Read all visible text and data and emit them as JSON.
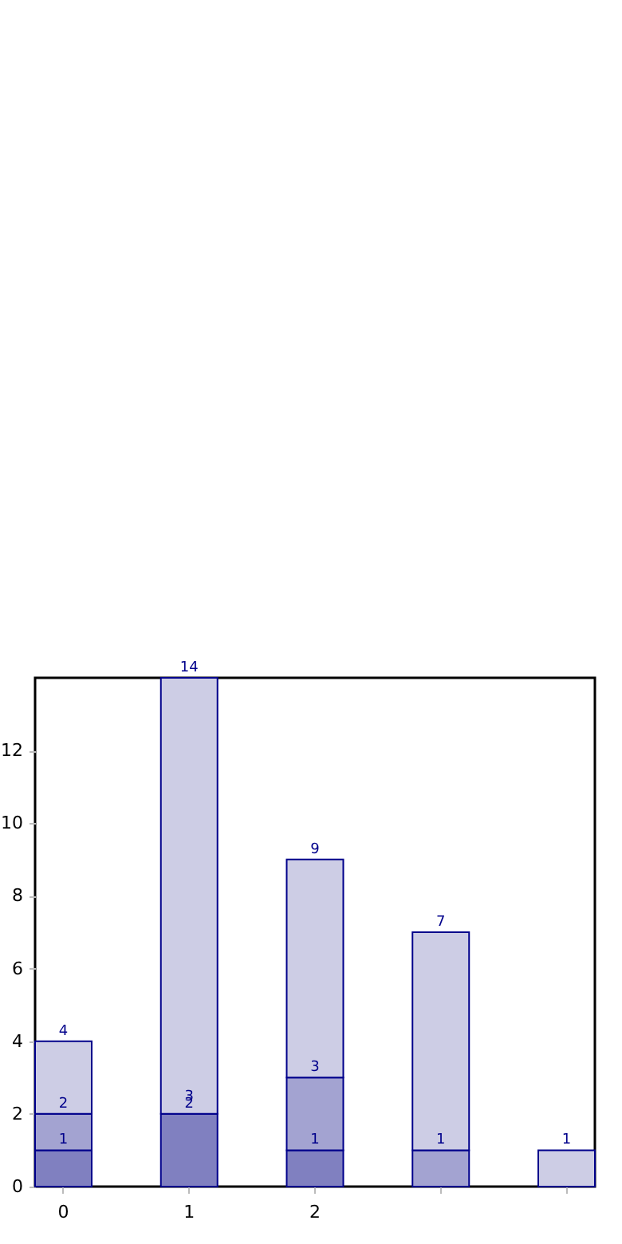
{
  "chart_data": {
    "type": "bar",
    "stacked": true,
    "categories": [
      "0",
      "1",
      "2",
      null,
      null
    ],
    "series": [
      {
        "color": "#8080c0",
        "values": [
          1,
          2,
          1,
          null,
          null
        ],
        "value_labels": [
          "1",
          "2",
          "1",
          null,
          null
        ]
      },
      {
        "color": "#a3a3d1",
        "values": [
          1,
          null,
          2,
          1,
          null
        ],
        "value_labels": [
          null,
          null,
          null,
          "1",
          null
        ]
      },
      {
        "color": "#cdcde5",
        "values": [
          2,
          12,
          6,
          6,
          1
        ]
      }
    ],
    "totals": [
      "4",
      "14",
      "9",
      "7",
      "1"
    ],
    "annotations": [
      {
        "text": "2",
        "x": "0",
        "y": 2
      },
      {
        "text": "3",
        "x": "1",
        "y": 2.2
      },
      {
        "text": "3",
        "x": "2",
        "y": 3
      }
    ],
    "ylim": [
      0,
      14
    ],
    "yticks": [
      0,
      2,
      4,
      6,
      8,
      10,
      12
    ],
    "grid": false
  }
}
